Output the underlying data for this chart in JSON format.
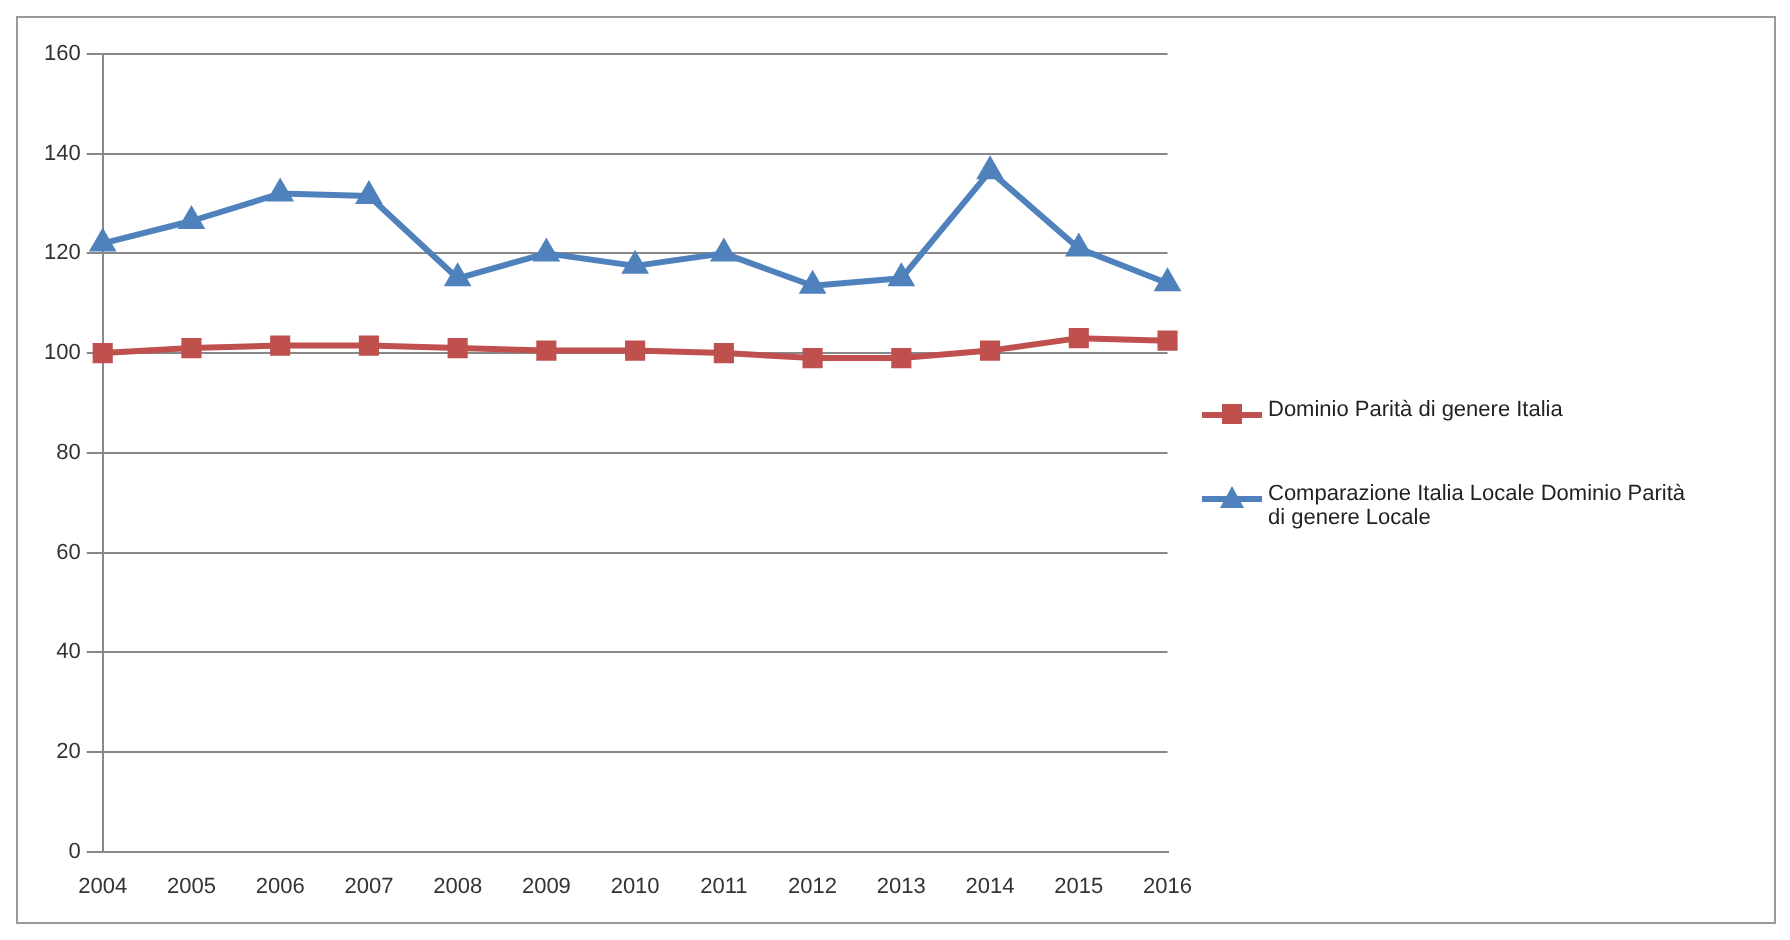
{
  "chart_data": {
    "type": "line",
    "categories": [
      "2004",
      "2005",
      "2006",
      "2007",
      "2008",
      "2009",
      "2010",
      "2011",
      "2012",
      "2013",
      "2014",
      "2015",
      "2016"
    ],
    "series": [
      {
        "name": "Dominio Parità di genere Italia",
        "color": "#c0504d",
        "marker": "square",
        "values": [
          100,
          101,
          101.5,
          101.5,
          101,
          100.5,
          100.5,
          100,
          99,
          99,
          100.5,
          103,
          102.5
        ]
      },
      {
        "name": "Comparazione Italia Locale Dominio Parità di genere Locale",
        "color": "#4f81bd",
        "marker": "triangle",
        "values": [
          122,
          126.5,
          132,
          131.5,
          115,
          120,
          117.5,
          120,
          113.5,
          115,
          136.5,
          121,
          114
        ]
      }
    ],
    "ylim": [
      0,
      160
    ],
    "yticks": [
      0,
      20,
      40,
      60,
      80,
      100,
      120,
      140,
      160
    ],
    "grid": "y",
    "legend": "right",
    "line_style": "solid"
  }
}
